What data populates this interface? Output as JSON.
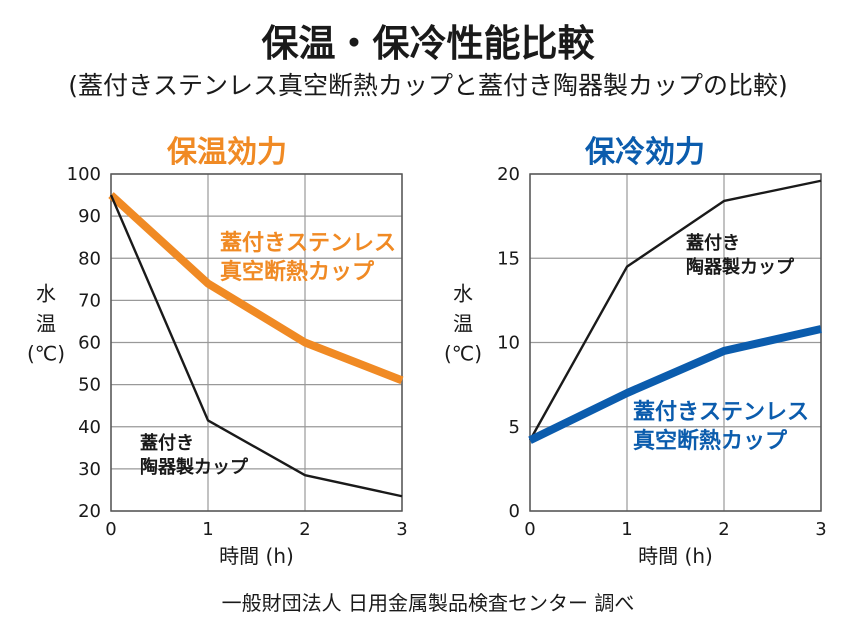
{
  "title": "保温・保冷性能比較",
  "subtitle": "(蓋付きステンレス真空断熱カップと蓋付き陶器製カップの比較)",
  "source": "一般財団法人 日用金属製品検査センター 調べ",
  "colors": {
    "orange": "#f08a24",
    "blue": "#0b5cad",
    "black": "#1a1a1a",
    "grid": "#999999"
  },
  "chart_data": [
    {
      "type": "line",
      "title": "保温効力",
      "title_color": "#f08a24",
      "xlabel": "時間 (h)",
      "ylabel": [
        "水",
        "温",
        "(℃)"
      ],
      "x": [
        0,
        1,
        2,
        3
      ],
      "xlim": [
        0,
        3
      ],
      "ylim": [
        20,
        100
      ],
      "yticks": [
        20,
        30,
        40,
        50,
        60,
        70,
        80,
        90,
        100
      ],
      "series": [
        {
          "name": "蓋付きステンレス真空断熱カップ",
          "label_lines": [
            "蓋付きステンレス",
            "真空断熱カップ"
          ],
          "values": [
            95,
            74,
            60,
            51
          ],
          "color": "#f08a24",
          "bold": true
        },
        {
          "name": "蓋付き陶器製カップ",
          "label_lines": [
            "蓋付き",
            "陶器製カップ"
          ],
          "values": [
            95,
            41.5,
            28.5,
            23.5
          ],
          "color": "#1a1a1a",
          "bold": false
        }
      ]
    },
    {
      "type": "line",
      "title": "保冷効力",
      "title_color": "#0b5cad",
      "xlabel": "時間 (h)",
      "ylabel": [
        "水",
        "温",
        "(℃)"
      ],
      "x": [
        0,
        1,
        2,
        3
      ],
      "xlim": [
        0,
        3
      ],
      "ylim": [
        0,
        20
      ],
      "yticks": [
        0,
        5,
        10,
        15,
        20
      ],
      "series": [
        {
          "name": "蓋付き陶器製カップ",
          "label_lines": [
            "蓋付き",
            "陶器製カップ"
          ],
          "values": [
            4.2,
            14.5,
            18.4,
            19.6
          ],
          "color": "#1a1a1a",
          "bold": false
        },
        {
          "name": "蓋付きステンレス真空断熱カップ",
          "label_lines": [
            "蓋付きステンレス",
            "真空断熱カップ"
          ],
          "values": [
            4.2,
            7.0,
            9.5,
            10.8
          ],
          "color": "#0b5cad",
          "bold": true
        }
      ]
    }
  ]
}
